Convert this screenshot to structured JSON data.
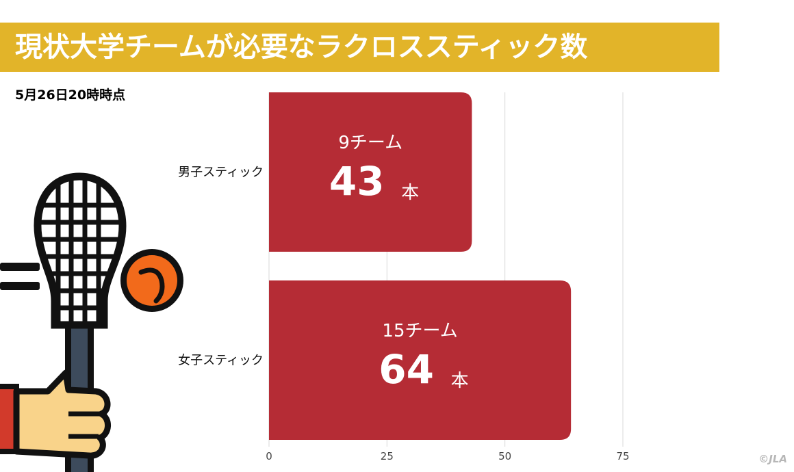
{
  "title": "現状大学チームが必要なラクロススティック数",
  "subtitle": "5月26日20時時点",
  "credit": "©JLA",
  "colors": {
    "title_bg": "#e2b429",
    "bar": "#b52c35"
  },
  "illustration": {
    "name": "hand-holding-lacrosse-stick-with-ball",
    "icons": [
      "lacrosse-stick-icon",
      "lacrosse-ball-icon",
      "hand-icon"
    ]
  },
  "chart_data": {
    "type": "bar",
    "orientation": "horizontal",
    "categories": [
      "男子スティック",
      "女子スティック"
    ],
    "values": [
      43,
      64
    ],
    "unit": "本",
    "team_labels": [
      "9チーム",
      "15チーム"
    ],
    "xlim": [
      0,
      75
    ],
    "xticks": [
      0,
      25,
      50,
      75
    ],
    "grid": true
  }
}
